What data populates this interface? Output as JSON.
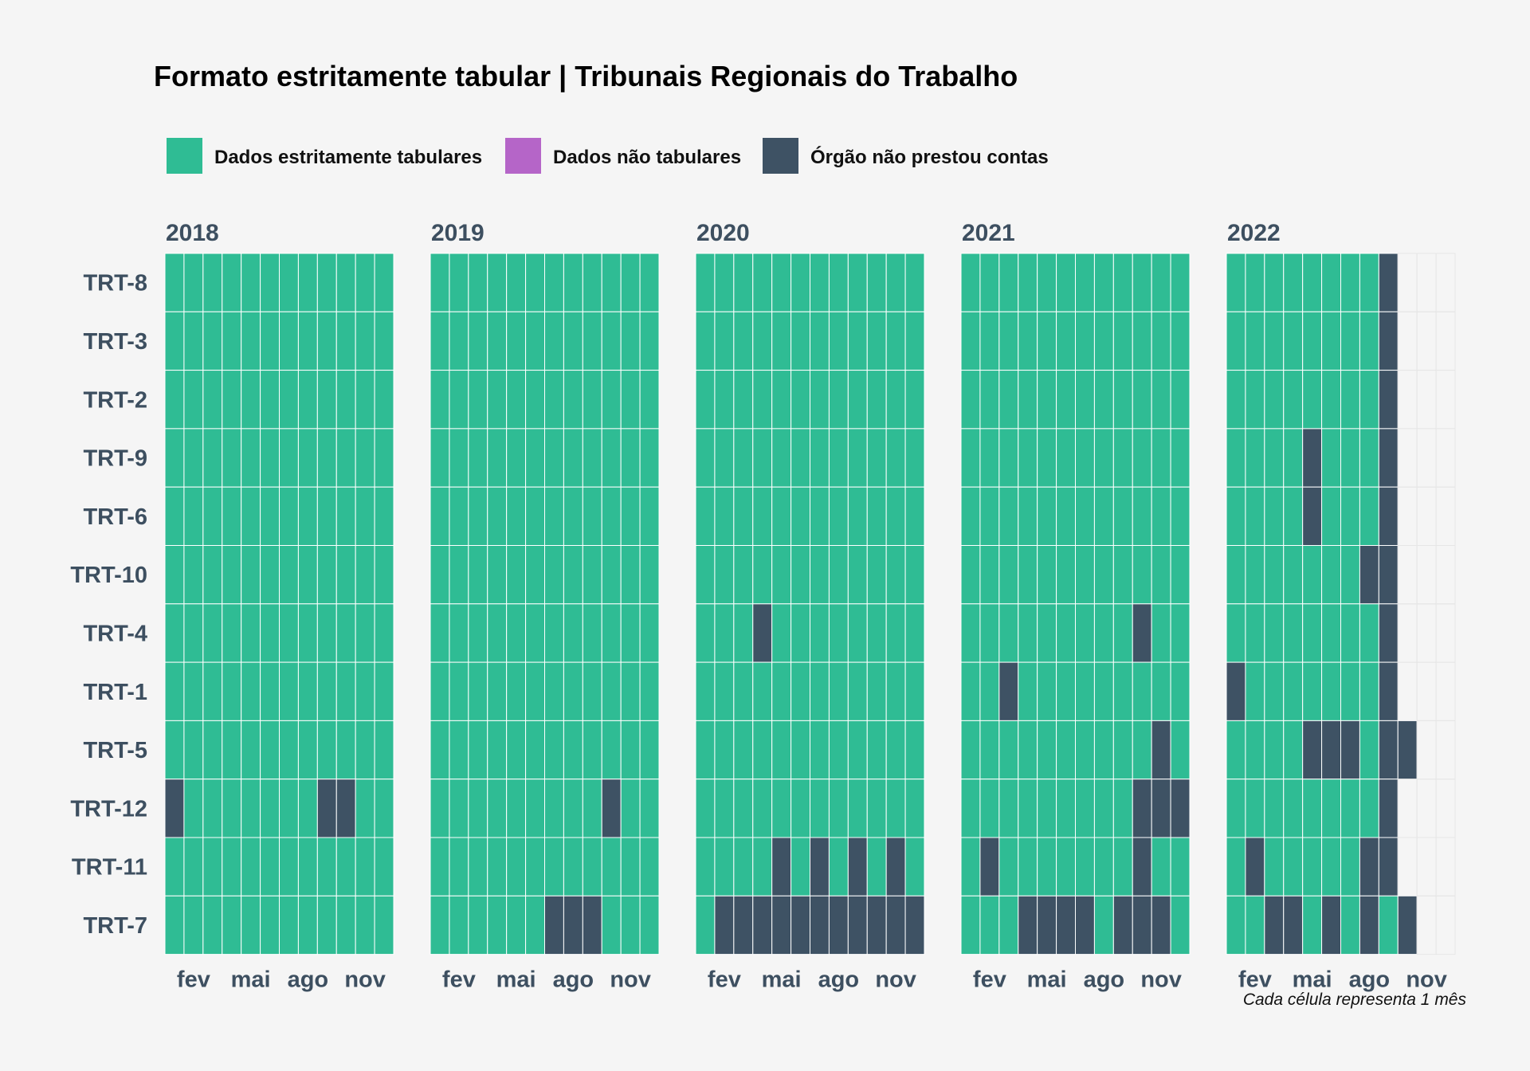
{
  "chart_data": {
    "type": "heatmap",
    "title": "Formato estritamente tabular | Tribunais Regionais do Trabalho",
    "caption": "Cada célula representa 1 mês",
    "legend": {
      "placement": "top",
      "entries": [
        {
          "key": "T",
          "label": "Dados estritamente tabulares",
          "color": "#2fbc94"
        },
        {
          "key": "N",
          "label": "Dados não tabulares",
          "color": "#b565c8"
        },
        {
          "key": "X",
          "label": "Órgão não prestou contas",
          "color": "#3e5264"
        }
      ]
    },
    "colors": {
      "background": "#f5f5f5",
      "cell_border": "#ffffff",
      "empty_grid": "#e6e6e6"
    },
    "rows": [
      "TRT-8",
      "TRT-3",
      "TRT-2",
      "TRT-9",
      "TRT-6",
      "TRT-10",
      "TRT-4",
      "TRT-1",
      "TRT-5",
      "TRT-12",
      "TRT-11",
      "TRT-7"
    ],
    "month_ticks": [
      {
        "month": 2,
        "label": "fev"
      },
      {
        "month": 5,
        "label": "mai"
      },
      {
        "month": 8,
        "label": "ago"
      },
      {
        "month": 11,
        "label": "nov"
      }
    ],
    "years": [
      {
        "year": "2018",
        "values": [
          "TTTTTTTTTTTT",
          "TTTTTTTTTTTT",
          "TTTTTTTTTTTT",
          "TTTTTTTTTTTT",
          "TTTTTTTTTTTT",
          "TTTTTTTTTTTT",
          "TTTTTTTTTTTT",
          "TTTTTTTTTTTT",
          "TTTTTTTTTTTT",
          "XTTTTTTTXXTT",
          "TTTTTTTTTTTT",
          "TTTTTTTTTTTT"
        ]
      },
      {
        "year": "2019",
        "values": [
          "TTTTTTTTTTTT",
          "TTTTTTTTTTTT",
          "TTTTTTTTTTTT",
          "TTTTTTTTTTTT",
          "TTTTTTTTTTTT",
          "TTTTTTTTTTTT",
          "TTTTTTTTTTTT",
          "TTTTTTTTTTTT",
          "TTTTTTTTTTTT",
          "TTTTTTTTTXTT",
          "TTTTTTTTTTTT",
          "TTTTTTXXXTTT"
        ]
      },
      {
        "year": "2020",
        "values": [
          "TTTTTTTTTTTT",
          "TTTTTTTTTTTT",
          "TTTTTTTTTTTT",
          "TTTTTTTTTTTT",
          "TTTTTTTTTTTT",
          "TTTTTTTTTTTT",
          "TTTXTTTTTTTT",
          "TTTTTTTTTTTT",
          "TTTTTTTTTTTT",
          "TTTTTTTTTTTT",
          "TTTTXTXTXTXT",
          "TXXXXXXXXXXX"
        ]
      },
      {
        "year": "2021",
        "values": [
          "TTTTTTTTTTTT",
          "TTTTTTTTTTTT",
          "TTTTTTTTTTTT",
          "TTTTTTTTTTTT",
          "TTTTTTTTTTTT",
          "TTTTTTTTTTTT",
          "TTTTTTTTTXTT",
          "TTXTTTTTTTTT",
          "TTTTTTTTTTXT",
          "TTTTTTTTTXXX",
          "TXTTTTTTTXTT",
          "TTTXXXXTXXXT"
        ]
      },
      {
        "year": "2022",
        "values": [
          "TTTTTTTTXEEE",
          "TTTTTTTTXEEE",
          "TTTTTTTTXEEE",
          "TTTTXTTTXEEE",
          "TTTTXTTTXEEE",
          "TTTTTTTXXEEE",
          "TTTTTTTTXEEE",
          "XTTTTTTTXEEE",
          "TTTTXXXTXXEE",
          "TTTTTTTTXEEE",
          "TXTTTTTXXEEE",
          "TTXXTXTXTXEE"
        ]
      }
    ]
  }
}
